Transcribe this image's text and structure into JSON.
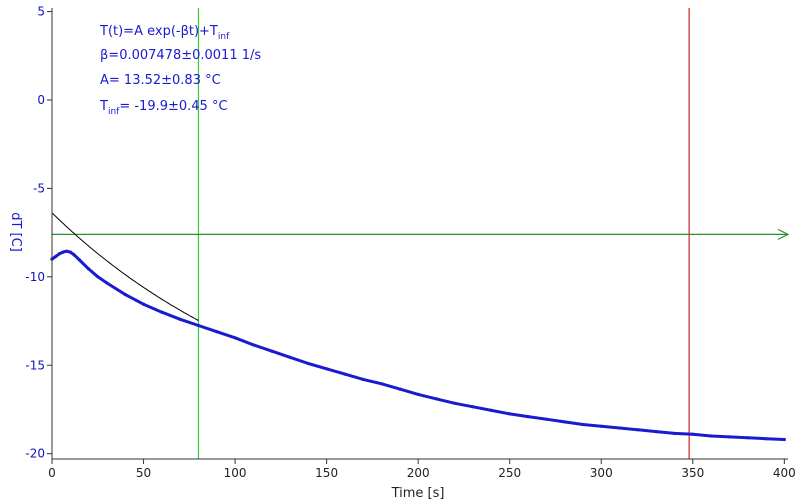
{
  "chart_data": {
    "type": "line",
    "title": "",
    "xlabel": "Time [s]",
    "ylabel": "dT [C]",
    "xlim": [
      0,
      402
    ],
    "ylim": [
      -20.3,
      5.2
    ],
    "xticks": [
      0,
      50,
      100,
      150,
      200,
      250,
      300,
      350,
      400
    ],
    "yticks": [
      5,
      0,
      -5,
      -10,
      -15,
      -20
    ],
    "grid": false,
    "fit": {
      "equation_main": "T(t)=A exp(-βt)+T",
      "equation_sub": "inf",
      "beta_text": "β=0.007478±0.0011 1/s",
      "A_text": "A= 13.52±0.83 °C",
      "tinf_main": "T",
      "tinf_sub": "inf",
      "tinf_value": "= -19.9±0.45 °C",
      "beta": 0.007478,
      "A": 13.52,
      "T_inf": -19.9,
      "x_range": [
        0,
        80
      ]
    },
    "series": [
      {
        "x": [
          0,
          2,
          4,
          6,
          8,
          10,
          12,
          15,
          20,
          25,
          30,
          40,
          50,
          60,
          70,
          80,
          90,
          100,
          110,
          120,
          130,
          140,
          150,
          160,
          170,
          180,
          190,
          200,
          210,
          220,
          230,
          240,
          250,
          260,
          270,
          280,
          290,
          300,
          310,
          320,
          330,
          340,
          350,
          360,
          370,
          380,
          390,
          400
        ],
        "y": [
          -9.0,
          -8.85,
          -8.7,
          -8.6,
          -8.55,
          -8.6,
          -8.75,
          -9.05,
          -9.55,
          -10.0,
          -10.35,
          -11.0,
          -11.55,
          -12.0,
          -12.4,
          -12.75,
          -13.1,
          -13.45,
          -13.85,
          -14.2,
          -14.55,
          -14.9,
          -15.2,
          -15.5,
          -15.8,
          -16.05,
          -16.35,
          -16.65,
          -16.9,
          -17.15,
          -17.35,
          -17.55,
          -17.75,
          -17.9,
          -18.05,
          -18.2,
          -18.35,
          -18.45,
          -18.55,
          -18.65,
          -18.75,
          -18.85,
          -18.9,
          -19.0,
          -19.05,
          -19.1,
          -19.15,
          -19.2
        ],
        "color": "#1a1ad0"
      }
    ],
    "cursors": {
      "horizontal_y": -7.6,
      "horizontal_color": "#2e8b2e",
      "vertical_green_x": 80,
      "vertical_green_color": "#33cc33",
      "vertical_red_x": 348,
      "vertical_red_color": "#cc2222"
    },
    "colors": {
      "axis_text": "#1414b8",
      "axis_line": "#333333",
      "fit_curve": "#000000"
    }
  }
}
